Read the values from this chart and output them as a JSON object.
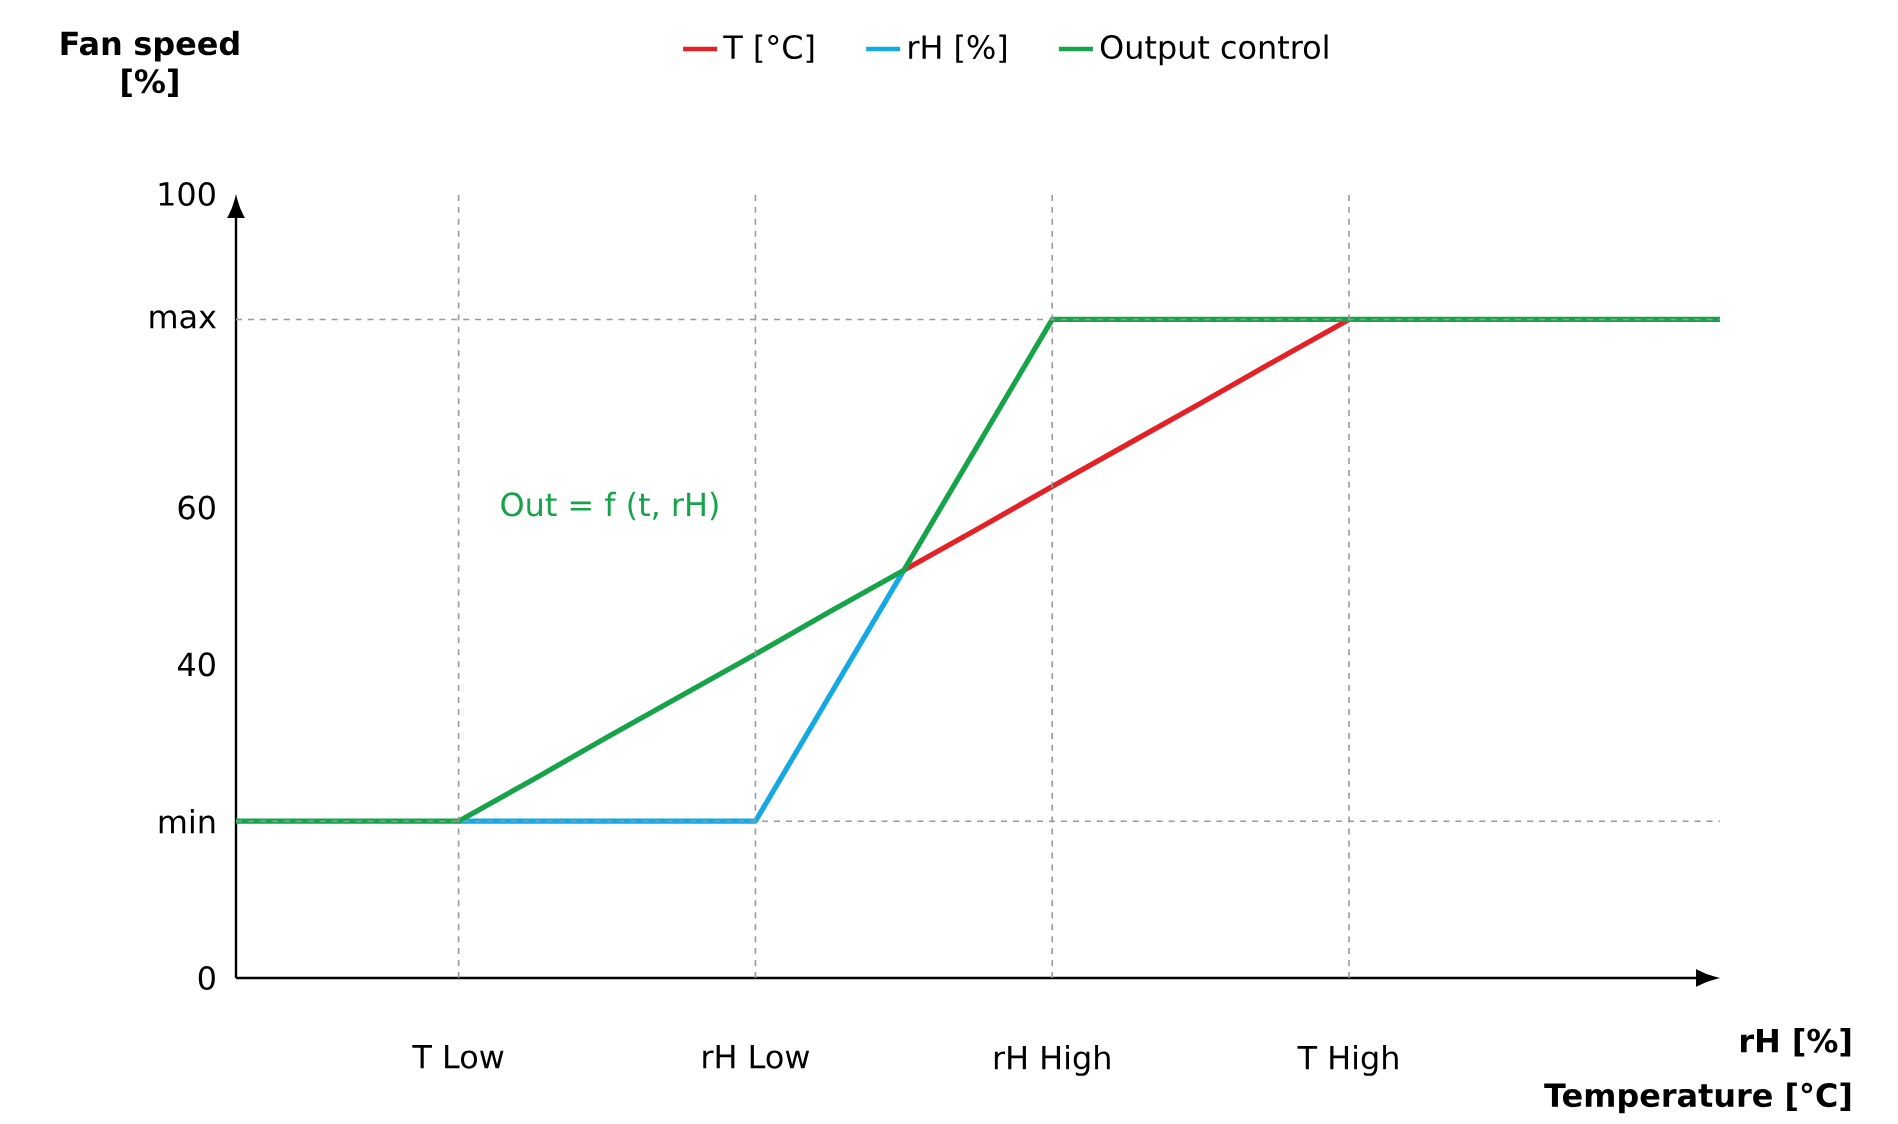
{
  "chart_data": {
    "type": "line",
    "ylabel": "Fan speed [%]",
    "xlabel": "rH [%]",
    "annotations": [
      "Temperature [°C]",
      "Out = f (t, rH)"
    ],
    "categories": [
      null,
      null,
      null,
      "T Low",
      null,
      null,
      null,
      "rH Low",
      null,
      null,
      null,
      "rH High",
      null,
      null,
      null,
      "T High",
      null,
      null,
      null,
      null,
      null
    ],
    "ylim": [
      0,
      100
    ],
    "yticks": [
      0,
      {
        "value": 20,
        "label": "min"
      },
      40,
      60,
      {
        "value": 84,
        "label": "max"
      },
      100
    ],
    "legend": "top",
    "line_style": "solid",
    "ref_lines": [
      {
        "axis": "x",
        "value": "T Low",
        "color": "#999999",
        "line_style": "dashed"
      },
      {
        "axis": "x",
        "value": "rH Low",
        "color": "#999999",
        "line_style": "dashed"
      },
      {
        "axis": "x",
        "value": "rH High",
        "color": "#999999",
        "line_style": "dashed"
      },
      {
        "axis": "x",
        "value": "T High",
        "color": "#999999",
        "line_style": "dashed"
      },
      {
        "axis": "y",
        "value": 20,
        "color": "#999999",
        "line_style": "dashed"
      },
      {
        "axis": "y",
        "value": 84,
        "color": "#999999",
        "line_style": "dashed"
      }
    ],
    "series": [
      {
        "name": "T [°C]",
        "color": "#e32227",
        "values": [
          null,
          null,
          null,
          null,
          null,
          null,
          null,
          null,
          null,
          52,
          57.3,
          62.7,
          68,
          73.3,
          78.7,
          84,
          null,
          null,
          null,
          null,
          null
        ]
      },
      {
        "name": "rH [%]",
        "color": "#14a9e3",
        "values": [
          null,
          null,
          null,
          20,
          20,
          20,
          20,
          20,
          36,
          52,
          null,
          null,
          null,
          null,
          null,
          null,
          null,
          null,
          null,
          null,
          null
        ]
      },
      {
        "name": "Output control",
        "color": "#17a34a",
        "values": [
          20,
          20,
          20,
          20,
          25.3,
          30.7,
          36,
          41.3,
          46.7,
          52,
          68,
          84,
          84,
          84,
          84,
          84,
          84,
          84,
          84,
          84,
          84
        ]
      }
    ]
  }
}
